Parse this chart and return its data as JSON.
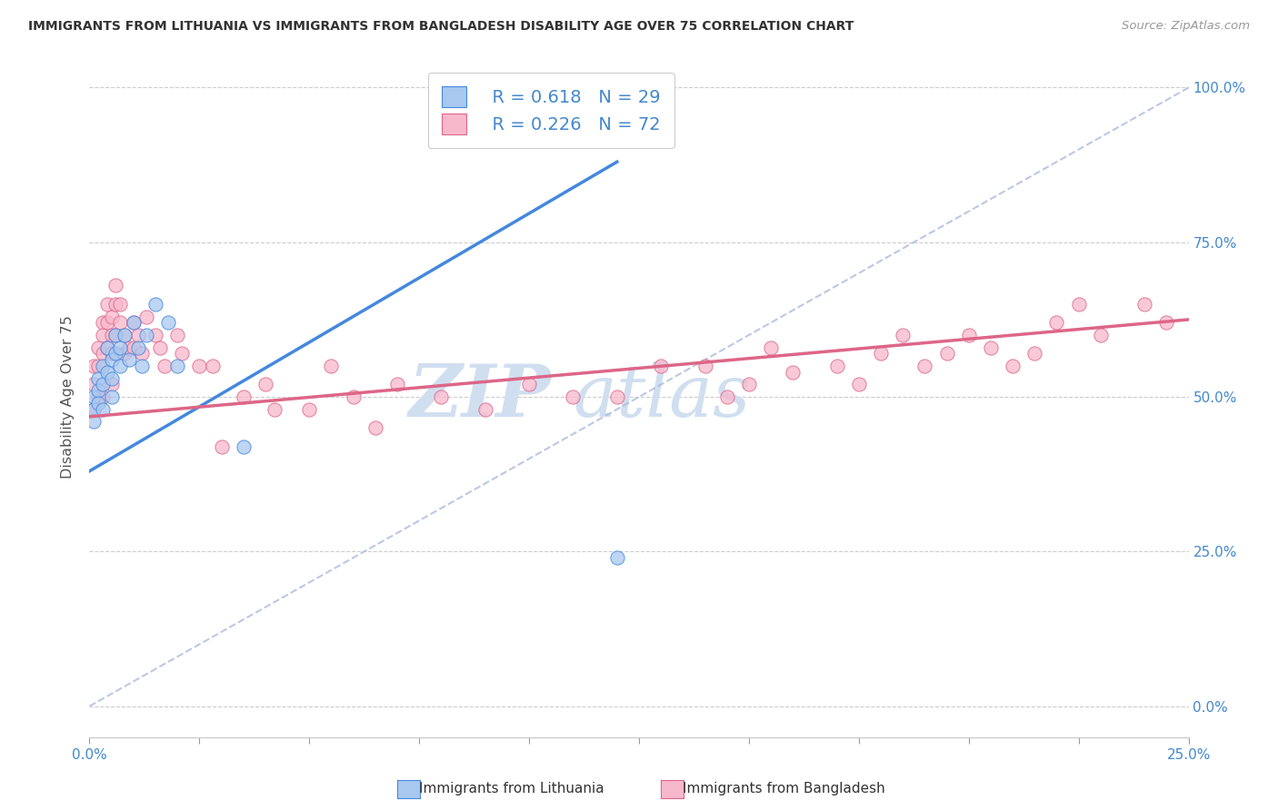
{
  "title": "IMMIGRANTS FROM LITHUANIA VS IMMIGRANTS FROM BANGLADESH DISABILITY AGE OVER 75 CORRELATION CHART",
  "source": "Source: ZipAtlas.com",
  "ylabel_left": "Disability Age Over 75",
  "xlim": [
    0.0,
    0.25
  ],
  "ylim": [
    -0.05,
    1.05
  ],
  "yticks_right": [
    0.0,
    0.25,
    0.5,
    0.75,
    1.0
  ],
  "ytick_labels_right": [
    "0.0%",
    "25.0%",
    "50.0%",
    "75.0%",
    "100.0%"
  ],
  "xtick_vals": [
    0.0,
    0.025,
    0.05,
    0.075,
    0.1,
    0.125,
    0.15,
    0.175,
    0.2,
    0.225,
    0.25
  ],
  "legend_r1": "R = 0.618",
  "legend_n1": "N = 29",
  "legend_r2": "R = 0.226",
  "legend_n2": "N = 72",
  "color_lithuania": "#a8c8f0",
  "color_bangladesh": "#f8b8cc",
  "color_line_lithuania": "#4488dd",
  "color_line_bangladesh": "#dd6688",
  "color_ref_line": "#aabbdd",
  "watermark_zip": "ZIP",
  "watermark_atlas": "atlas",
  "watermark_color": "#d0dff0",
  "legend_label1": "Immigrants from Lithuania",
  "legend_label2": "Immigrants from Bangladesh",
  "lith_line_x0": 0.0,
  "lith_line_y0": 0.38,
  "lith_line_x1": 0.12,
  "lith_line_y1": 0.88,
  "bang_line_x0": 0.0,
  "bang_line_y0": 0.468,
  "bang_line_x1": 0.25,
  "bang_line_y1": 0.625,
  "lith_x": [
    0.001,
    0.001,
    0.001,
    0.002,
    0.002,
    0.002,
    0.003,
    0.003,
    0.003,
    0.004,
    0.004,
    0.005,
    0.005,
    0.005,
    0.006,
    0.006,
    0.007,
    0.007,
    0.008,
    0.009,
    0.01,
    0.011,
    0.012,
    0.013,
    0.015,
    0.018,
    0.02,
    0.035,
    0.12
  ],
  "lith_y": [
    0.5,
    0.48,
    0.46,
    0.53,
    0.51,
    0.49,
    0.55,
    0.52,
    0.48,
    0.58,
    0.54,
    0.56,
    0.53,
    0.5,
    0.6,
    0.57,
    0.58,
    0.55,
    0.6,
    0.56,
    0.62,
    0.58,
    0.55,
    0.6,
    0.65,
    0.62,
    0.55,
    0.42,
    0.24
  ],
  "bang_x": [
    0.001,
    0.001,
    0.001,
    0.002,
    0.002,
    0.002,
    0.003,
    0.003,
    0.003,
    0.003,
    0.004,
    0.004,
    0.004,
    0.005,
    0.005,
    0.005,
    0.005,
    0.006,
    0.006,
    0.006,
    0.007,
    0.007,
    0.008,
    0.008,
    0.009,
    0.01,
    0.01,
    0.011,
    0.012,
    0.013,
    0.015,
    0.016,
    0.017,
    0.02,
    0.021,
    0.025,
    0.028,
    0.03,
    0.035,
    0.04,
    0.042,
    0.05,
    0.055,
    0.06,
    0.065,
    0.07,
    0.08,
    0.09,
    0.1,
    0.11,
    0.12,
    0.13,
    0.14,
    0.145,
    0.15,
    0.155,
    0.16,
    0.17,
    0.175,
    0.18,
    0.185,
    0.19,
    0.195,
    0.2,
    0.205,
    0.21,
    0.215,
    0.22,
    0.225,
    0.23,
    0.24,
    0.245
  ],
  "bang_y": [
    0.55,
    0.52,
    0.48,
    0.58,
    0.55,
    0.5,
    0.62,
    0.6,
    0.57,
    0.5,
    0.65,
    0.62,
    0.58,
    0.63,
    0.6,
    0.57,
    0.52,
    0.68,
    0.65,
    0.6,
    0.65,
    0.62,
    0.6,
    0.57,
    0.58,
    0.62,
    0.58,
    0.6,
    0.57,
    0.63,
    0.6,
    0.58,
    0.55,
    0.6,
    0.57,
    0.55,
    0.55,
    0.42,
    0.5,
    0.52,
    0.48,
    0.48,
    0.55,
    0.5,
    0.45,
    0.52,
    0.5,
    0.48,
    0.52,
    0.5,
    0.5,
    0.55,
    0.55,
    0.5,
    0.52,
    0.58,
    0.54,
    0.55,
    0.52,
    0.57,
    0.6,
    0.55,
    0.57,
    0.6,
    0.58,
    0.55,
    0.57,
    0.62,
    0.65,
    0.6,
    0.65,
    0.62
  ]
}
